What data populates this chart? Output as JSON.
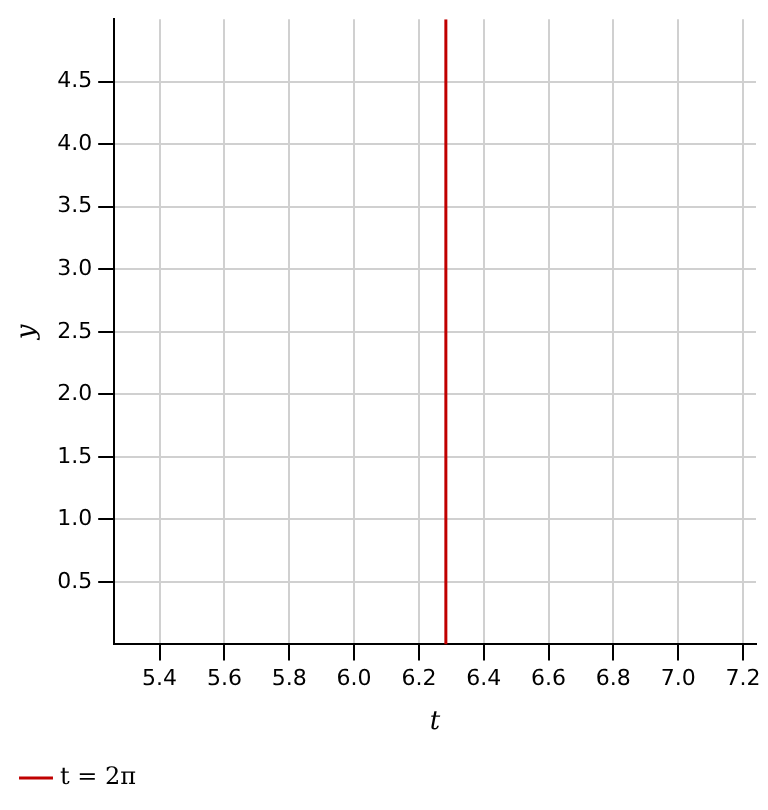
{
  "chart_data": {
    "type": "line",
    "xlabel": "t",
    "ylabel": "y",
    "xlim": [
      5.26,
      7.24
    ],
    "xticks": [
      {
        "value": 5.4,
        "label": "5.4"
      },
      {
        "value": 5.6,
        "label": "5.6"
      },
      {
        "value": 5.8,
        "label": "5.8"
      },
      {
        "value": 6.0,
        "label": "6.0"
      },
      {
        "value": 6.2,
        "label": "6.2"
      },
      {
        "value": 6.4,
        "label": "6.4"
      },
      {
        "value": 6.6,
        "label": "6.6"
      },
      {
        "value": 6.8,
        "label": "6.8"
      },
      {
        "value": 7.0,
        "label": "7.0"
      },
      {
        "value": 7.2,
        "label": "7.2"
      }
    ],
    "ylim": [
      0,
      5
    ],
    "yticks": [
      0.5,
      {
        "value": 1.0,
        "label": "1.0"
      },
      1.5,
      {
        "value": 2.0,
        "label": "2.0"
      },
      2.5,
      {
        "value": 3.0,
        "label": "3.0"
      },
      3.5,
      {
        "value": 4.0,
        "label": "4.0"
      },
      4.5
    ],
    "series": [
      {
        "name": "t = 2π",
        "color": "#c00000",
        "x": [
          6.2832,
          6.2832
        ],
        "values": [
          0,
          5
        ]
      }
    ],
    "grid": true,
    "legend": "bottom left",
    "marker": "none",
    "line_style": "solid"
  }
}
